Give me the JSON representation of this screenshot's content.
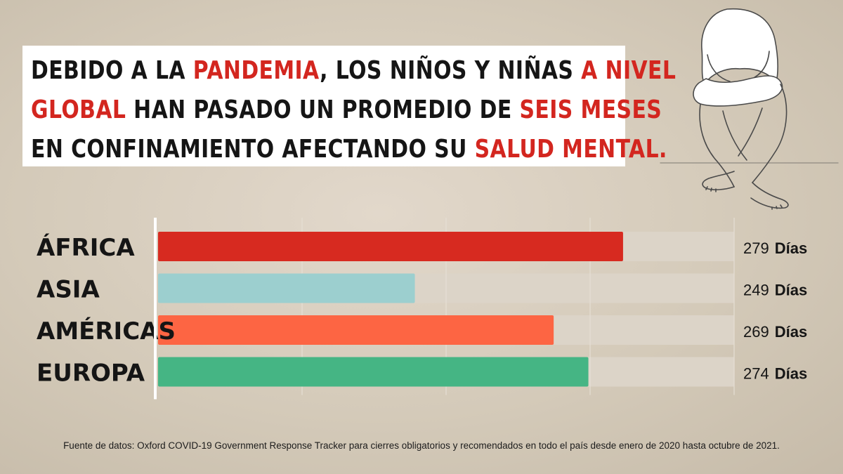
{
  "headline": {
    "lines": [
      [
        {
          "t": "DEBIDO A LA ",
          "h": false
        },
        {
          "t": "PANDEMIA",
          "h": true
        },
        {
          "t": ", LOS NIÑOS Y NIÑAS ",
          "h": false
        },
        {
          "t": "A NIVEL",
          "h": true
        }
      ],
      [
        {
          "t": "GLOBAL",
          "h": true
        },
        {
          "t": " HAN PASADO UN PROMEDIO DE ",
          "h": false
        },
        {
          "t": "SEIS MESES",
          "h": true
        }
      ],
      [
        {
          "t": "EN CONFINAMIENTO AFECTANDO SU ",
          "h": false
        },
        {
          "t": "SALUD MENTAL.",
          "h": true
        }
      ]
    ]
  },
  "chart_data": {
    "type": "bar",
    "orientation": "horizontal",
    "categories": [
      "ÁFRICA",
      "ASIA",
      "AMÉRICAS",
      "EUROPA"
    ],
    "values": [
      279,
      249,
      269,
      274
    ],
    "unit": "Días",
    "colors": [
      "#d72a20",
      "#9ccfcf",
      "#fd6543",
      "#45b584"
    ],
    "track_color": "#dcd4c8",
    "xlim": [
      212,
      295
    ],
    "grid": true
  },
  "source": "Fuente de datos: Oxford COVID-19 Government Response Tracker para cierres obligatorios y recomendados en todo el país desde enero de 2020 hasta octubre de 2021.",
  "illustration_icon": "sitting-child-illustration"
}
